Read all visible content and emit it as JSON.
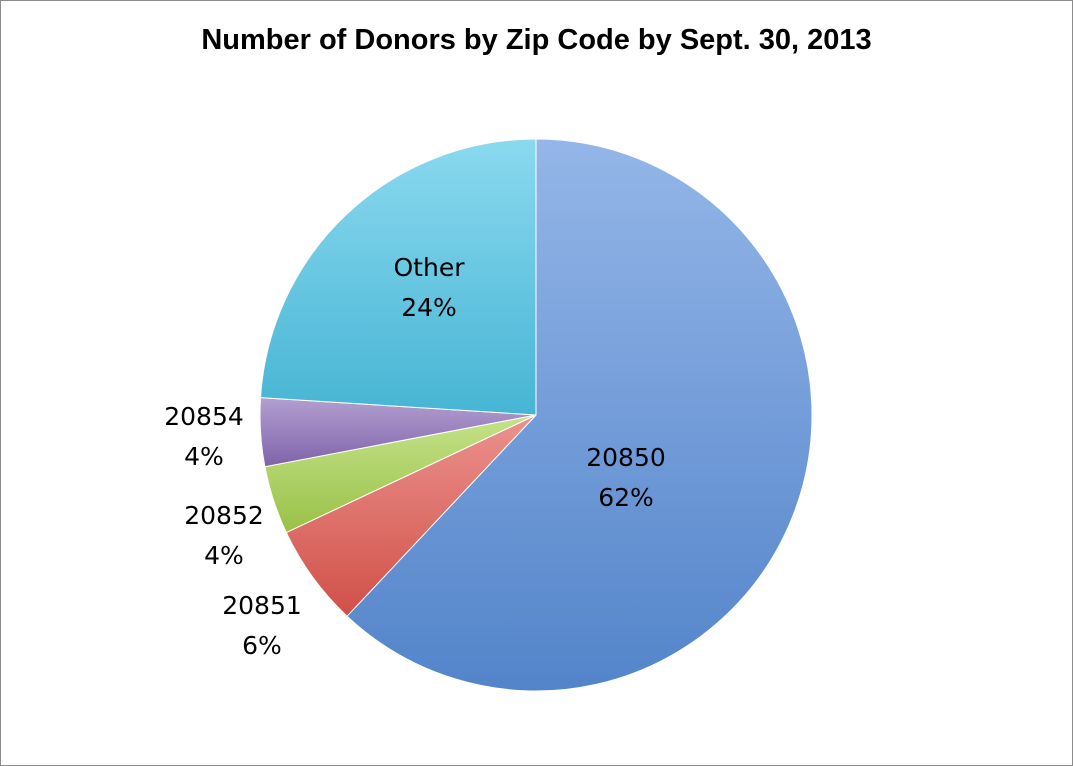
{
  "chart_data": {
    "type": "pie",
    "title": "Number of Donors by Zip Code by Sept. 30, 2013",
    "slices": [
      {
        "name": "20850",
        "value": 62,
        "pct_label": "62%",
        "color": "#5a8fdc"
      },
      {
        "name": "20851",
        "value": 6,
        "pct_label": "6%",
        "color": "#e2574f"
      },
      {
        "name": "20852",
        "value": 4,
        "pct_label": "4%",
        "color": "#a6d24d"
      },
      {
        "name": "20854",
        "value": 4,
        "pct_label": "4%",
        "color": "#8a6cb8"
      },
      {
        "name": "Other",
        "value": 24,
        "pct_label": "24%",
        "color": "#4cc5e6"
      }
    ],
    "legend": "none",
    "data_labels": "category name and percentage"
  }
}
